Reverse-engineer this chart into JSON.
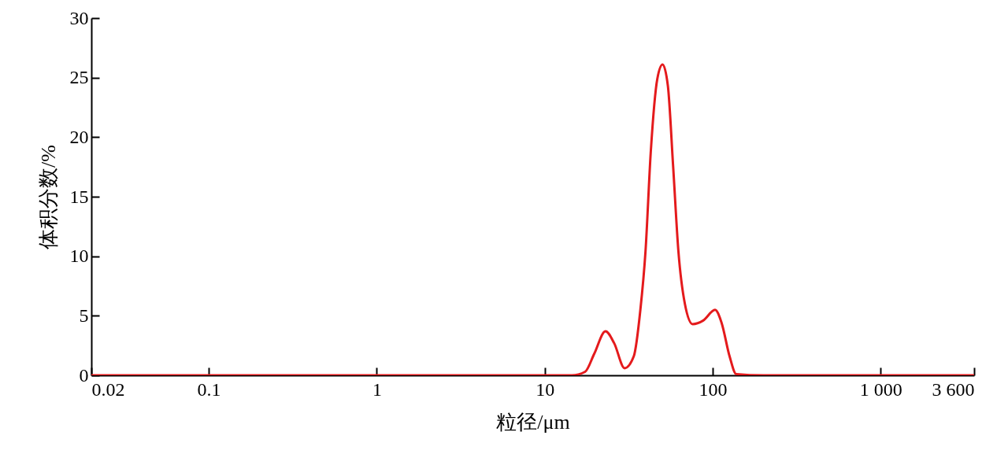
{
  "chart_data": {
    "type": "line",
    "xlabel": "粒径/μm",
    "ylabel": "体积分数/%",
    "log": "x",
    "xlim": [
      0.02,
      3600
    ],
    "xticks": [
      0.02,
      0.1,
      1,
      10,
      100,
      {
        "value": 1000,
        "label": "1 000"
      },
      {
        "value": 3600,
        "label": "3 600"
      }
    ],
    "ylim": [
      0,
      30
    ],
    "yticks": [
      0,
      5,
      10,
      15,
      20,
      25,
      30
    ],
    "grid": false,
    "marker": "none",
    "line_style": "solid",
    "series": [
      {
        "color": "#e41a1c",
        "x": [
          0.02,
          1,
          10,
          14.5,
          17.4,
          19.7,
          23.0,
          25.9,
          29.9,
          33.9,
          37.1,
          39.8,
          42.8,
          46.8,
          50.3,
          54.1,
          58.1,
          62.5,
          68.3,
          76.0,
          87.8,
          103.3,
          113,
          126,
          138,
          200,
          3600
        ],
        "values": [
          0,
          0,
          0,
          0,
          0.3,
          1.8,
          3.7,
          2.7,
          0.6,
          1.6,
          5.5,
          10.4,
          18.8,
          24.9,
          26.1,
          24.3,
          17.6,
          10.4,
          6.0,
          4.3,
          4.6,
          5.5,
          4.4,
          1.6,
          0.1,
          0,
          0
        ]
      }
    ]
  }
}
